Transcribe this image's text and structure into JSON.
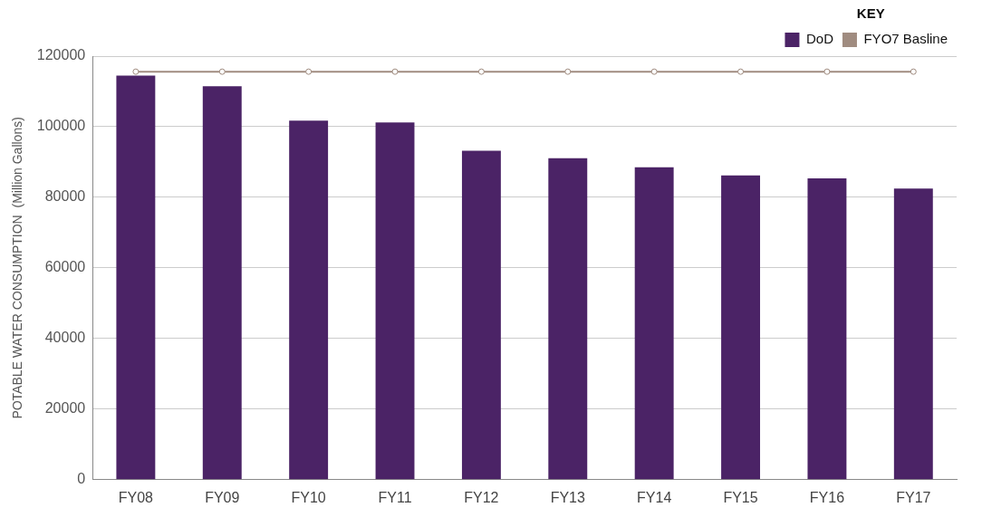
{
  "chart_data": {
    "type": "bar",
    "ylabel": "POTABLE WATER CONSUMPTION  (Million Gallons)",
    "legend_title": "KEY",
    "categories": [
      "FY08",
      "FY09",
      "FY10",
      "FY11",
      "FY12",
      "FY13",
      "FY14",
      "FY15",
      "FY16",
      "FY17"
    ],
    "series": [
      {
        "name": "DoD",
        "color": "#4b2366",
        "values": [
          114500,
          111500,
          101700,
          101200,
          93200,
          91100,
          88500,
          86200,
          85400,
          82500
        ]
      },
      {
        "name": "FYO7 Basline",
        "type": "line",
        "color": "#a08c80",
        "marker": "circle",
        "values": [
          115600,
          115600,
          115600,
          115600,
          115600,
          115600,
          115600,
          115600,
          115600,
          115600
        ]
      }
    ],
    "ylim": [
      0,
      120000
    ],
    "yticks": [
      0,
      20000,
      40000,
      60000,
      80000,
      100000,
      120000
    ],
    "grid": "y",
    "legend": "top right"
  }
}
